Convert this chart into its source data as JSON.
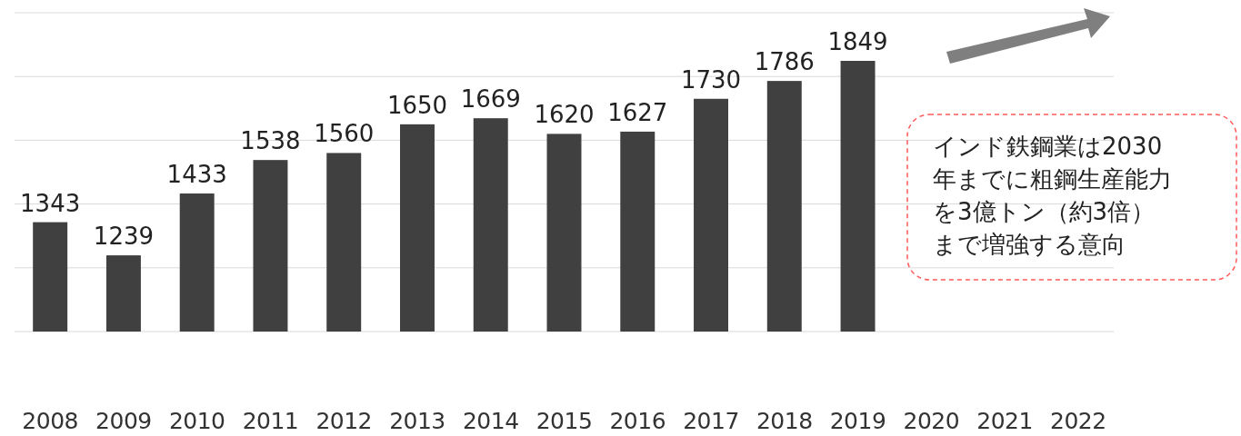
{
  "chart_data": {
    "type": "bar",
    "categories": [
      "2008",
      "2009",
      "2010",
      "2011",
      "2012",
      "2013",
      "2014",
      "2015",
      "2016",
      "2017",
      "2018",
      "2019",
      "2020",
      "2021",
      "2022"
    ],
    "values": [
      1343,
      1239,
      1433,
      1538,
      1560,
      1650,
      1669,
      1620,
      1627,
      1730,
      1786,
      1849,
      null,
      null,
      null
    ],
    "color": "#404040",
    "ylim": [
      1000,
      2000
    ],
    "yticks": [
      {
        "value": 1000,
        "label": null
      },
      {
        "value": 1200,
        "label": null
      },
      {
        "value": 1400,
        "label": null
      },
      {
        "value": 1600,
        "label": null
      },
      {
        "value": 1800,
        "label": null
      },
      {
        "value": 2000,
        "label": null
      }
    ],
    "tick_labels": "x",
    "grid": "y",
    "data_labels": true,
    "annotations": [
      "インド鉄鋼業は2030年までに粗鋼生産能力を3億トン（約3倍）まで増強する意向"
    ]
  }
}
